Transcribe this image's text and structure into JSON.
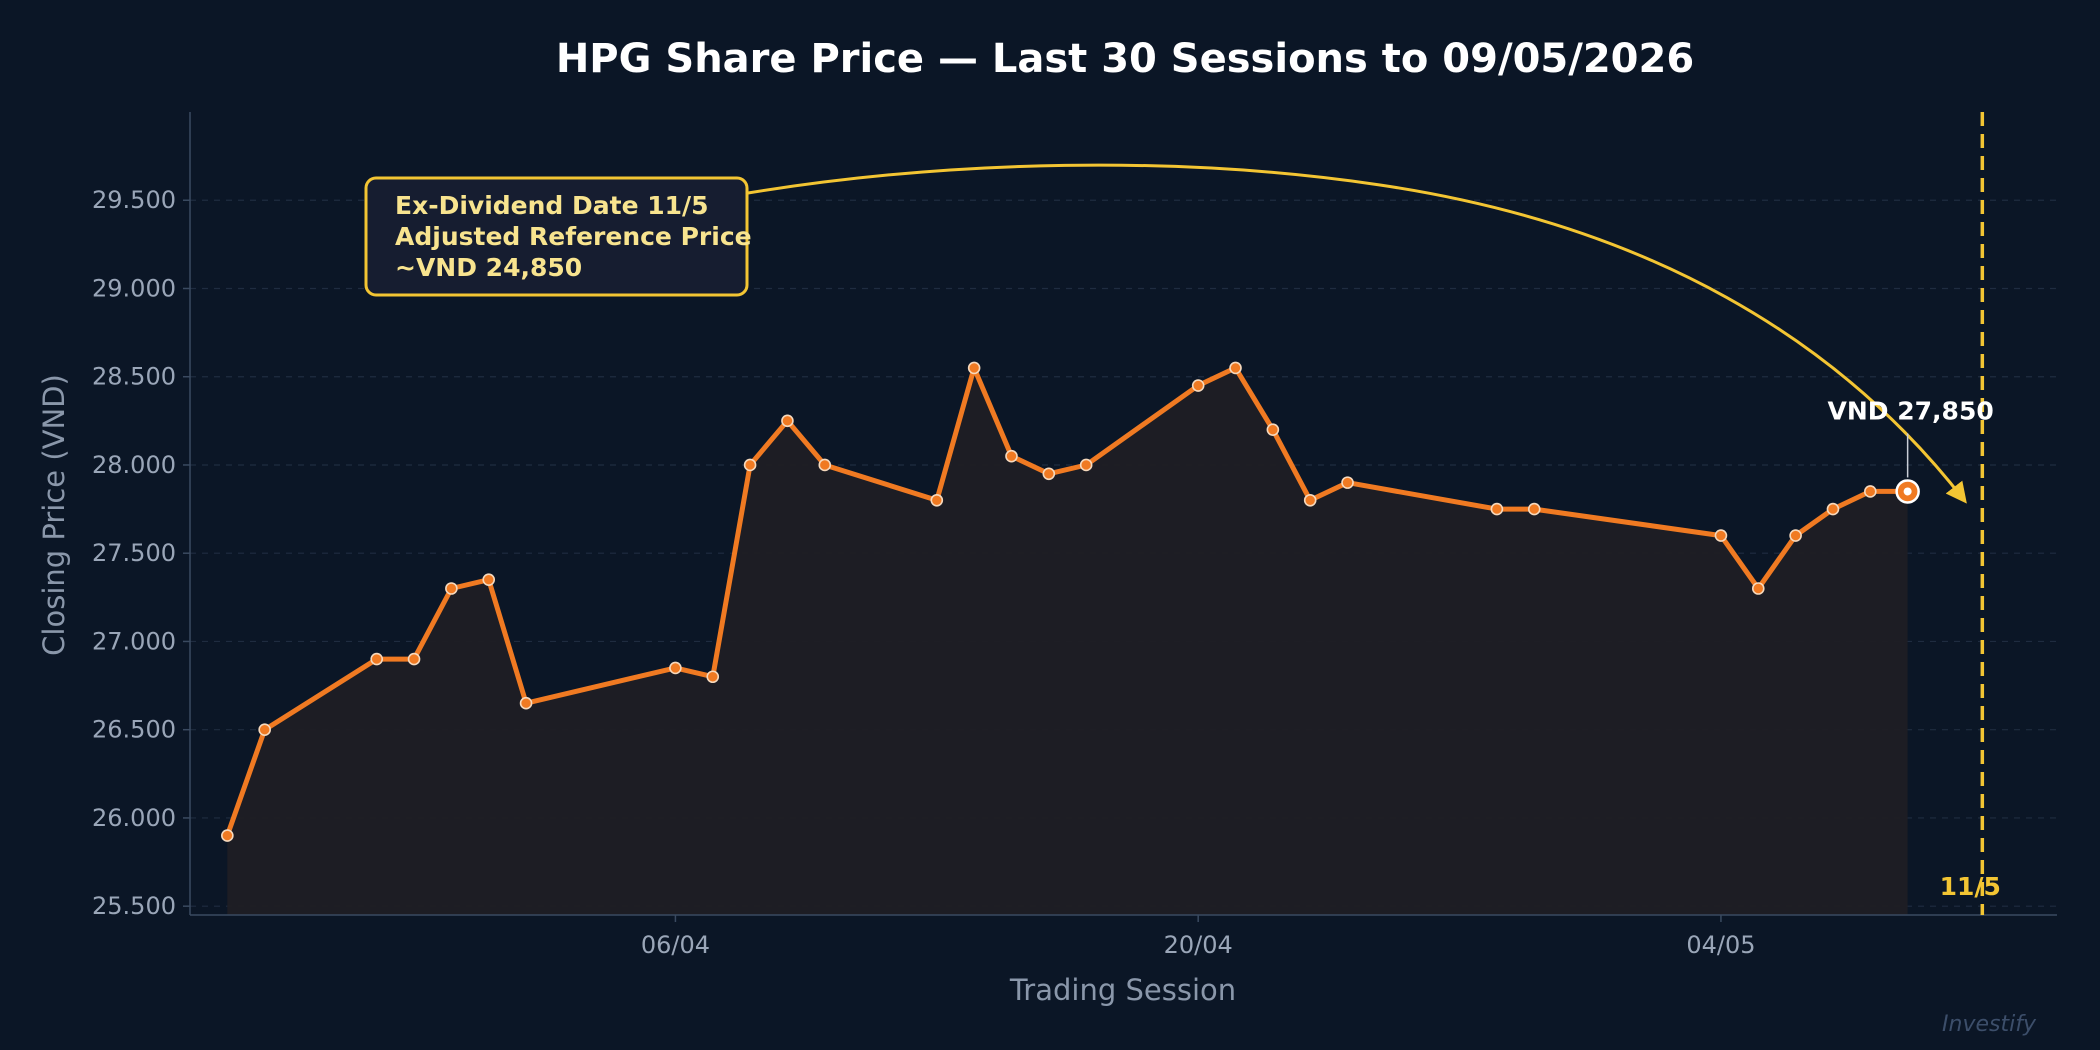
{
  "chart_data": {
    "type": "line",
    "title": "HPG Share Price — Last 30 Sessions to 09/05/2026",
    "xlabel": "Trading Session",
    "ylabel": "Closing Price (VND)",
    "ylim": [
      25450,
      30000
    ],
    "yticks": [
      25500,
      26000,
      26500,
      27000,
      27500,
      28000,
      28500,
      29000,
      29500
    ],
    "ytick_labels": [
      "25.500",
      "26.000",
      "26.500",
      "27.000",
      "27.500",
      "28.000",
      "28.500",
      "29.000",
      "29.500"
    ],
    "xticks": [
      {
        "date": "2026-04-06",
        "label": "06/04"
      },
      {
        "date": "2026-04-20",
        "label": "20/04"
      },
      {
        "date": "2026-05-04",
        "label": "04/05"
      }
    ],
    "xlim": [
      "2026-03-24",
      "2026-05-13"
    ],
    "grid": "horizontal-dashed",
    "series": [
      {
        "x": [
          "2026-03-25",
          "2026-03-26",
          "2026-03-29",
          "2026-03-30",
          "2026-03-31",
          "2026-04-01",
          "2026-04-02",
          "2026-04-06",
          "2026-04-07",
          "2026-04-08",
          "2026-04-09",
          "2026-04-10",
          "2026-04-13",
          "2026-04-14",
          "2026-04-15",
          "2026-04-16",
          "2026-04-17",
          "2026-04-20",
          "2026-04-21",
          "2026-04-22",
          "2026-04-23",
          "2026-04-24",
          "2026-04-28",
          "2026-04-29",
          "2026-05-04",
          "2026-05-05",
          "2026-05-06",
          "2026-05-07",
          "2026-05-08",
          "2026-05-09"
        ],
        "values": [
          25900,
          26500,
          26900,
          26900,
          27300,
          27350,
          26650,
          26850,
          26800,
          28000,
          28250,
          28000,
          27800,
          28550,
          28050,
          27950,
          28000,
          28450,
          28550,
          28200,
          27800,
          27900,
          27750,
          27750,
          27600,
          27300,
          27600,
          27750,
          27850,
          27850
        ],
        "color": "#f07a22"
      }
    ],
    "last_point": {
      "date": "2026-05-09",
      "value": 27850,
      "label": "VND 27,850"
    },
    "marker": {
      "date": "2026-05-11",
      "label": "11/5",
      "color": "#f3c533"
    },
    "annotation": {
      "lines": [
        "Ex-Dividend Date 11/5",
        "Adjusted Reference Price",
        "~VND 24,850"
      ],
      "color": "#f3c533"
    },
    "watermark": "Investify"
  }
}
